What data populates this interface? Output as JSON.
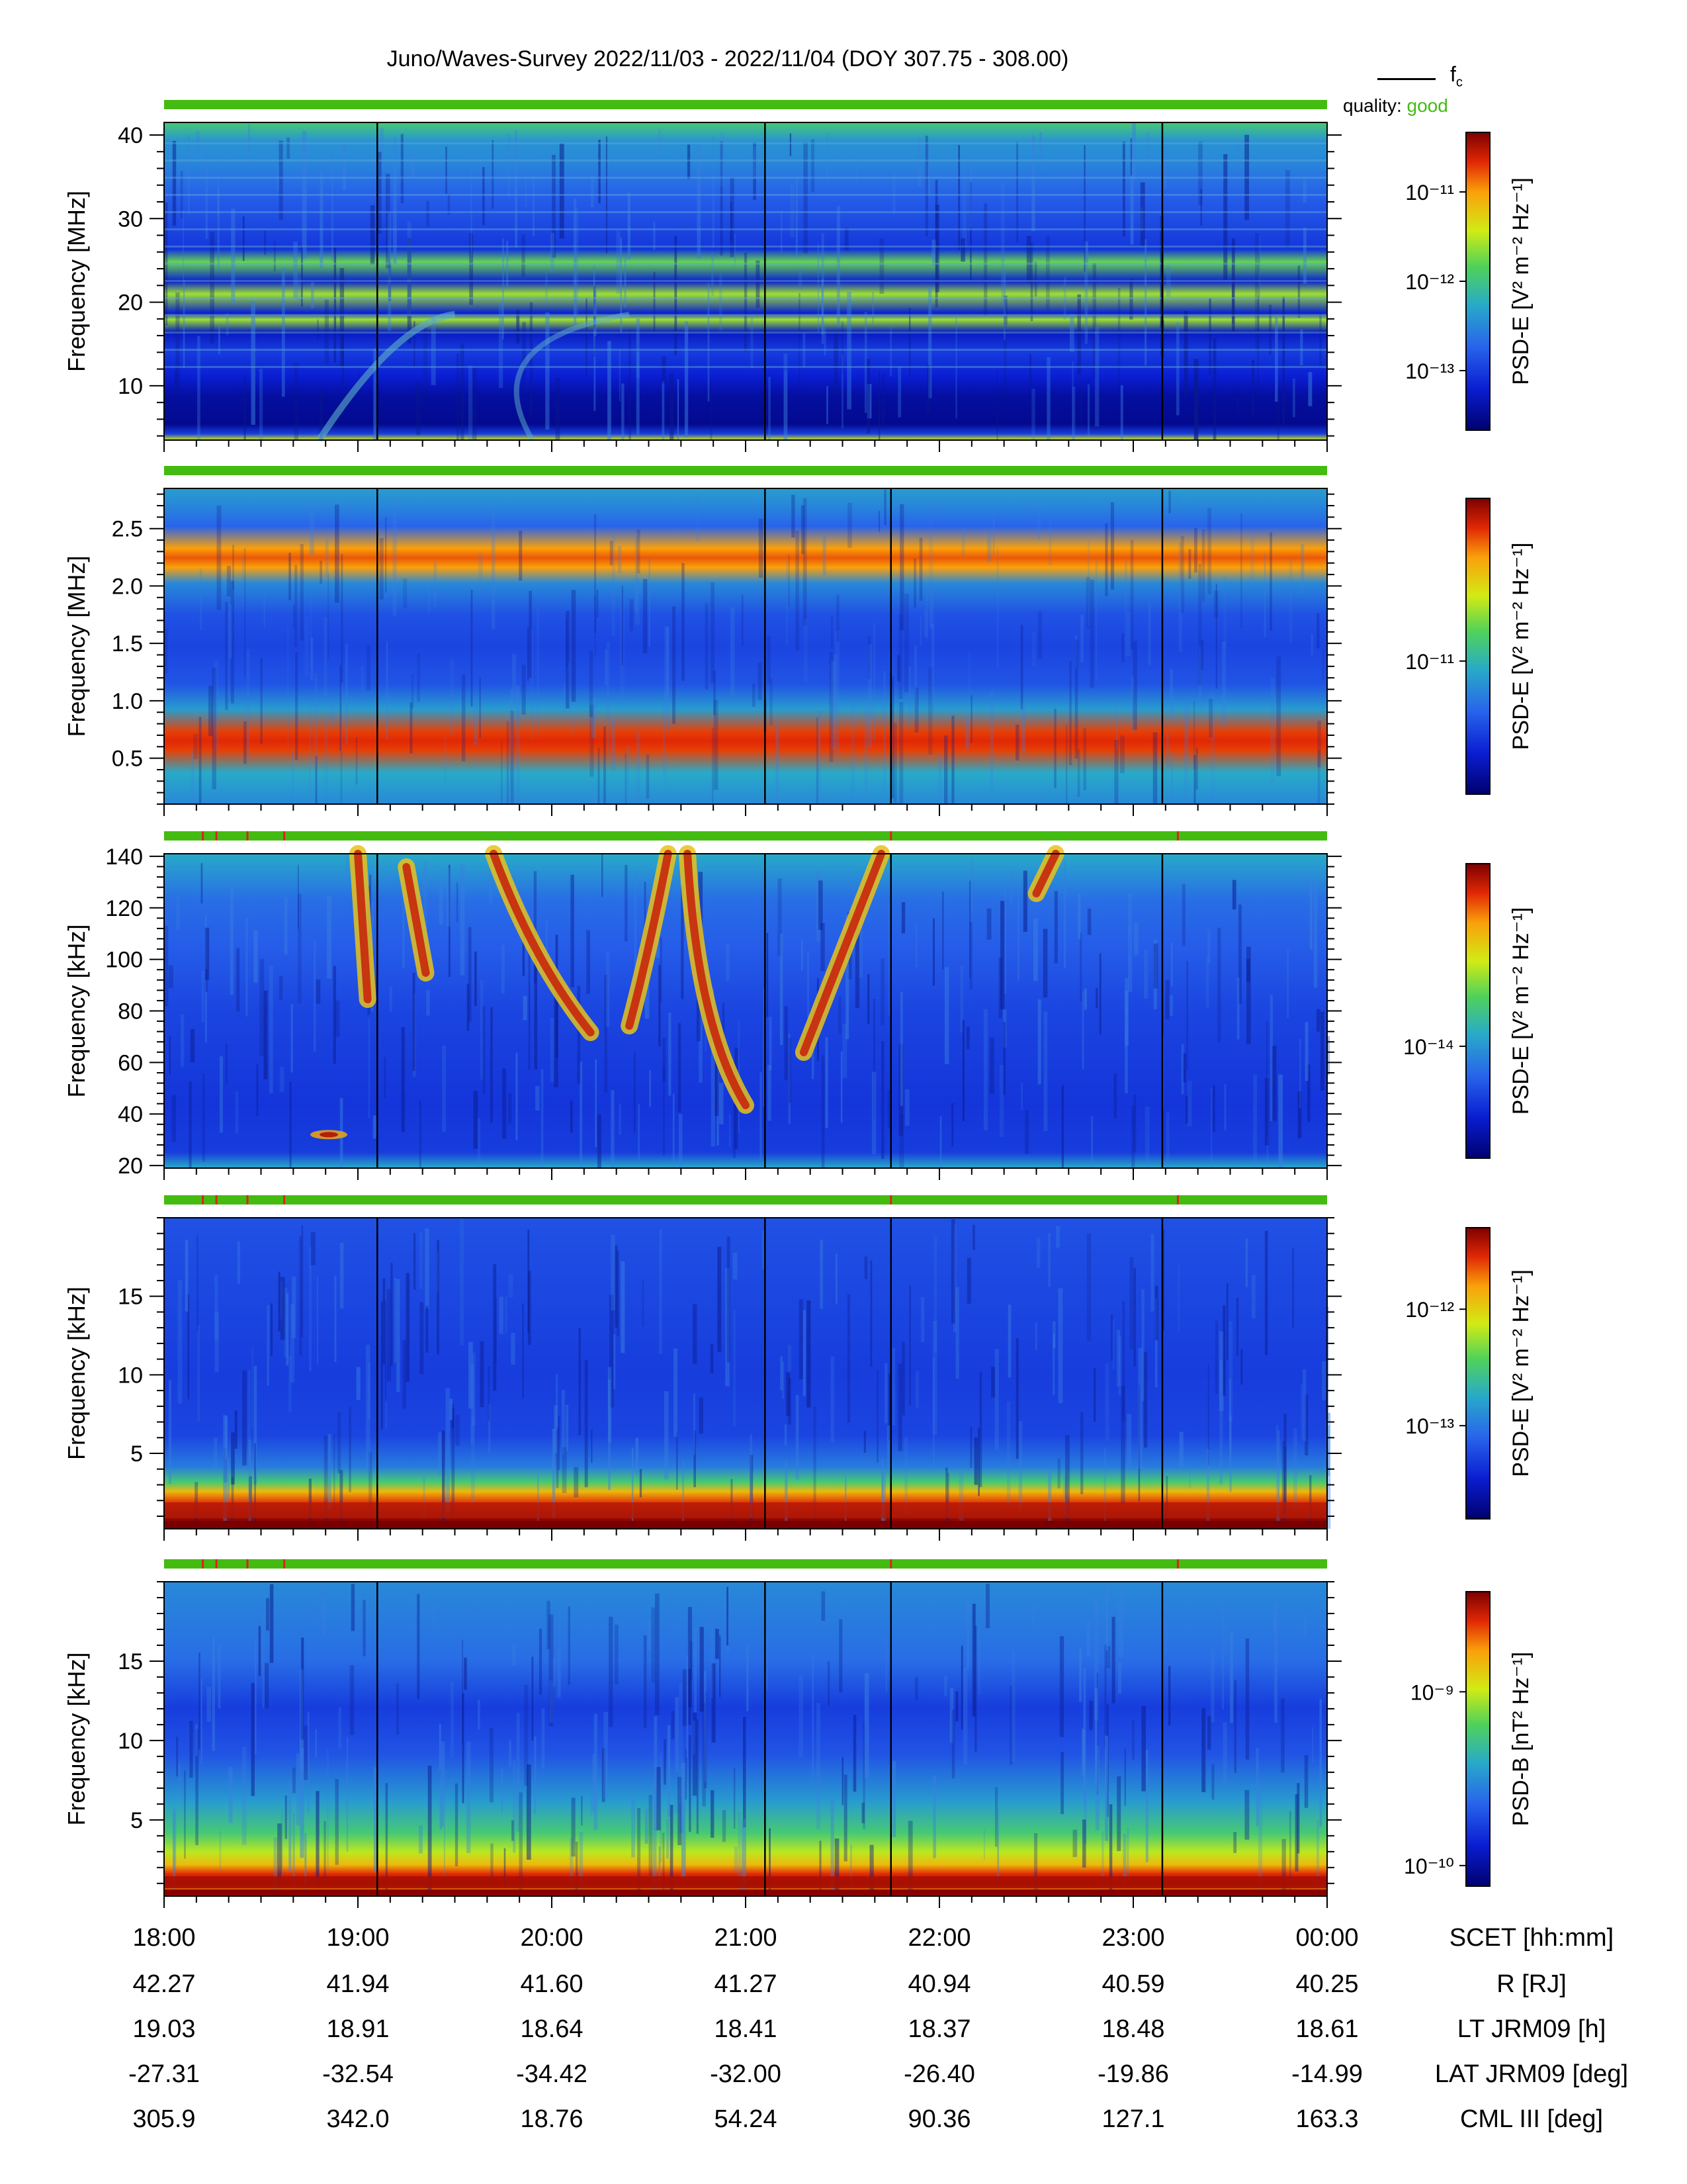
{
  "title": "Juno/Waves-Survey  2022/11/03 - 2022/11/04 (DOY 307.75 - 308.00)",
  "legend": {
    "line_label": "f",
    "line_label_sub": "c",
    "quality_label": "quality:",
    "quality_value": "good",
    "quality_color": "#44bb11"
  },
  "chart_data": [
    {
      "type": "heatmap",
      "ylabel": "Frequency [MHz]",
      "ylim": [
        3.5,
        41.5
      ],
      "yticks": [
        10,
        20,
        30,
        40
      ],
      "colorbar_label": "PSD-E [V² m⁻² Hz⁻¹]",
      "colorbar_ticks": [
        "10⁻¹¹",
        "10⁻¹²",
        "10⁻¹³"
      ],
      "colorbar_tick_fracs": [
        0.8,
        0.5,
        0.2
      ],
      "markers_hours": [
        19.1,
        21.1,
        23.15
      ],
      "quality_flags": []
    },
    {
      "type": "heatmap",
      "ylabel": "Frequency [MHz]",
      "ylim": [
        0.1,
        2.85
      ],
      "yticks": [
        0.5,
        1.0,
        1.5,
        2.0,
        2.5
      ],
      "colorbar_label": "PSD-E [V² m⁻² Hz⁻¹]",
      "colorbar_ticks": [
        "10⁻¹¹"
      ],
      "colorbar_tick_fracs": [
        0.45
      ],
      "markers_hours": [
        19.1,
        21.1,
        21.75,
        23.15
      ],
      "quality_flags": []
    },
    {
      "type": "heatmap",
      "ylabel": "Frequency [kHz]",
      "ylim": [
        19,
        141
      ],
      "yticks": [
        20,
        40,
        60,
        80,
        100,
        120,
        140
      ],
      "colorbar_label": "PSD-E [V² m⁻² Hz⁻¹]",
      "colorbar_ticks": [
        "10⁻¹⁴"
      ],
      "colorbar_tick_fracs": [
        0.38
      ],
      "markers_hours": [
        19.1,
        21.1,
        21.75,
        23.15
      ],
      "quality_flags": [
        18.2,
        18.27,
        18.43,
        18.62,
        21.75,
        23.23
      ]
    },
    {
      "type": "heatmap",
      "ylabel": "Frequency [kHz]",
      "ylim": [
        0.2,
        20
      ],
      "yticks": [
        5,
        10,
        15
      ],
      "colorbar_label": "PSD-E [V² m⁻² Hz⁻¹]",
      "colorbar_ticks": [
        "10⁻¹²",
        "10⁻¹³"
      ],
      "colorbar_tick_fracs": [
        0.72,
        0.32
      ],
      "markers_hours": [
        19.1,
        21.1,
        21.75,
        23.15
      ],
      "quality_flags": [
        18.2,
        18.27,
        18.43,
        18.62,
        21.75,
        23.23
      ]
    },
    {
      "type": "heatmap",
      "ylabel": "Frequency [kHz]",
      "ylim": [
        0.2,
        20
      ],
      "yticks": [
        5,
        10,
        15
      ],
      "colorbar_label": "PSD-B [nT² Hz⁻¹]",
      "colorbar_ticks": [
        "10⁻⁹",
        "10⁻¹⁰"
      ],
      "colorbar_tick_fracs": [
        0.66,
        0.07
      ],
      "markers_hours": [
        19.1,
        21.1,
        21.75,
        23.15
      ],
      "quality_flags": [
        18.2,
        18.27,
        18.43,
        18.62,
        21.75,
        23.23
      ]
    }
  ],
  "xaxis": {
    "hours": [
      18,
      19,
      20,
      21,
      22,
      23,
      24
    ],
    "rows": [
      {
        "label": "SCET [hh:mm]",
        "values": [
          "18:00",
          "19:00",
          "20:00",
          "21:00",
          "22:00",
          "23:00",
          "00:00"
        ]
      },
      {
        "label": "R [RJ]",
        "values": [
          "42.27",
          "41.94",
          "41.60",
          "41.27",
          "40.94",
          "40.59",
          "40.25"
        ]
      },
      {
        "label": "LT JRM09 [h]",
        "values": [
          "19.03",
          "18.91",
          "18.64",
          "18.41",
          "18.37",
          "18.48",
          "18.61"
        ]
      },
      {
        "label": "LAT JRM09 [deg]",
        "values": [
          "-27.31",
          "-32.54",
          "-34.42",
          "-32.00",
          "-26.40",
          "-19.86",
          "-14.99"
        ]
      },
      {
        "label": "CML III [deg]",
        "values": [
          "305.9",
          "342.0",
          "18.76",
          "54.24",
          "90.36",
          "127.1",
          "163.3"
        ]
      }
    ]
  }
}
